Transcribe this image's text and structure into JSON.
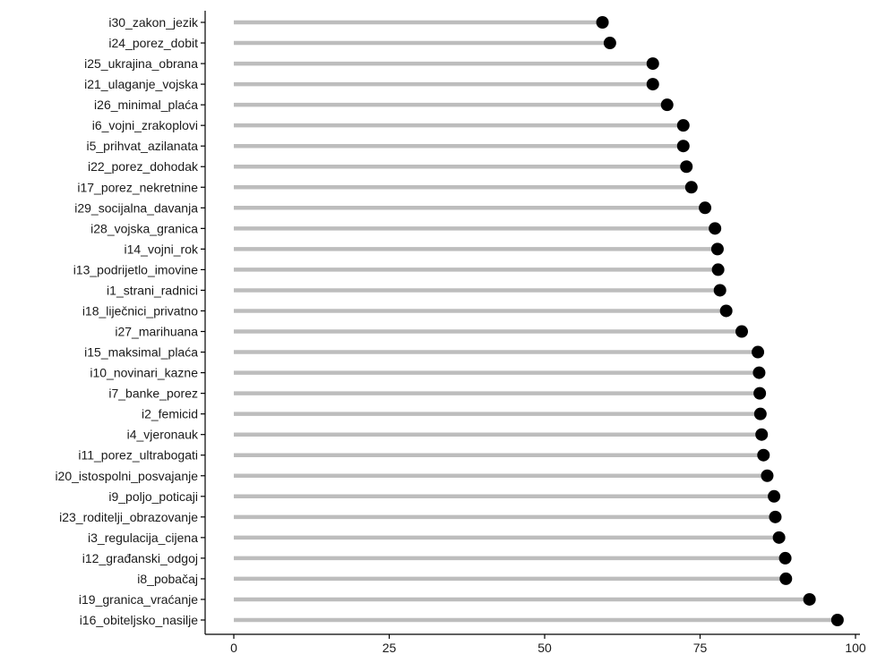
{
  "chart_data": {
    "type": "lollipop",
    "title": "",
    "xlabel": "",
    "ylabel": "",
    "xlim": [
      0,
      100
    ],
    "x_ticks": [
      0,
      25,
      50,
      75,
      100
    ],
    "grid": false,
    "legend": "none",
    "colors": {
      "stem": "#bdbdbd",
      "dot": "#000000",
      "axis": "#000000",
      "text": "#1a1a1a"
    },
    "categories": [
      "i30_zakon_jezik",
      "i24_porez_dobit",
      "i25_ukrajina_obrana",
      "i21_ulaganje_vojska",
      "i26_minimal_plaća",
      "i6_vojni_zrakoplovi",
      "i5_prihvat_azilanata",
      "i22_porez_dohodak",
      "i17_porez_nekretnine",
      "i29_socijalna_davanja",
      "i28_vojska_granica",
      "i14_vojni_rok",
      "i13_podrijetlo_imovine",
      "i1_strani_radnici",
      "i18_liječnici_privatno",
      "i27_marihuana",
      "i15_maksimal_plaća",
      "i10_novinari_kazne",
      "i7_banke_porez",
      "i2_femicid",
      "i4_vjeronauk",
      "i11_porez_ultrabogati",
      "i20_istospolni_posvajanje",
      "i9_poljo_poticaji",
      "i23_roditelji_obrazovanje",
      "i3_regulacija_cijena",
      "i12_građanski_odgoj",
      "i8_pobačaj",
      "i19_granica_vraćanje",
      "i16_obiteljsko_nasilje"
    ],
    "values": [
      59.3,
      60.5,
      67.4,
      67.4,
      69.7,
      72.3,
      72.3,
      72.8,
      73.6,
      75.8,
      77.4,
      77.8,
      77.9,
      78.2,
      79.2,
      81.7,
      84.3,
      84.5,
      84.6,
      84.7,
      84.9,
      85.2,
      85.8,
      86.9,
      87.1,
      87.7,
      88.7,
      88.8,
      92.6,
      97.1
    ]
  }
}
